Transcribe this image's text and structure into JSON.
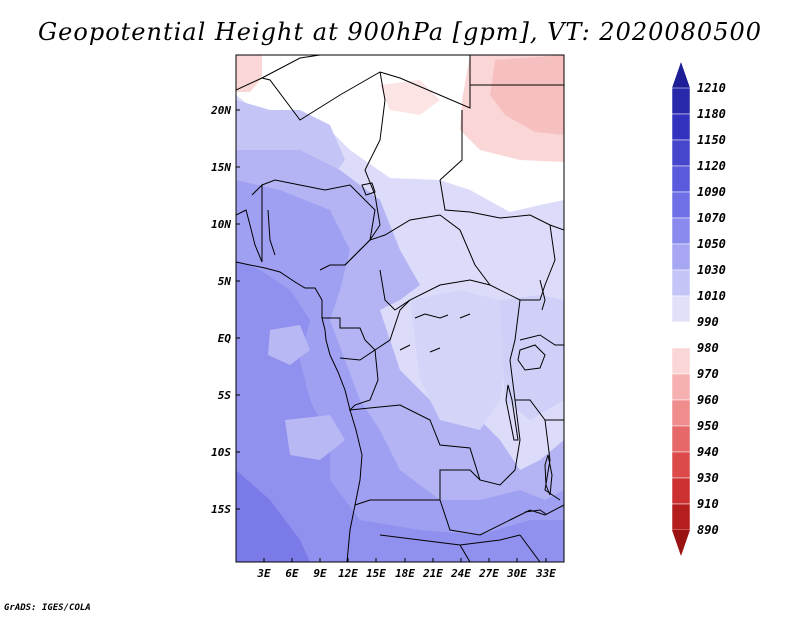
{
  "title": "Geopotential Height at 900hPa [gpm], VT: 2020080500",
  "credit": "GrADS: IGES/COLA",
  "map": {
    "lat_labels": [
      "20N",
      "15N",
      "10N",
      "5N",
      "EQ",
      "5S",
      "10S",
      "15S"
    ],
    "lon_labels": [
      "3E",
      "6E",
      "9E",
      "12E",
      "15E",
      "18E",
      "21E",
      "24E",
      "27E",
      "30E",
      "33E"
    ]
  },
  "colorbar": {
    "labels": [
      "1210",
      "1180",
      "1150",
      "1120",
      "1090",
      "1070",
      "1050",
      "1030",
      "1010",
      "990",
      "980",
      "970",
      "960",
      "950",
      "940",
      "930",
      "910",
      "890"
    ],
    "colors": [
      "#1e1e96",
      "#2828aa",
      "#3232be",
      "#4646cc",
      "#5a5adc",
      "#7070e6",
      "#8a8aee",
      "#a6a6f2",
      "#c4c4f6",
      "#e0e0fa",
      "#ffffff",
      "#fbd6d6",
      "#f6b0b0",
      "#ef8c8c",
      "#e66868",
      "#dc4a4a",
      "#cc3030",
      "#b41e1e",
      "#9a1212"
    ]
  }
}
